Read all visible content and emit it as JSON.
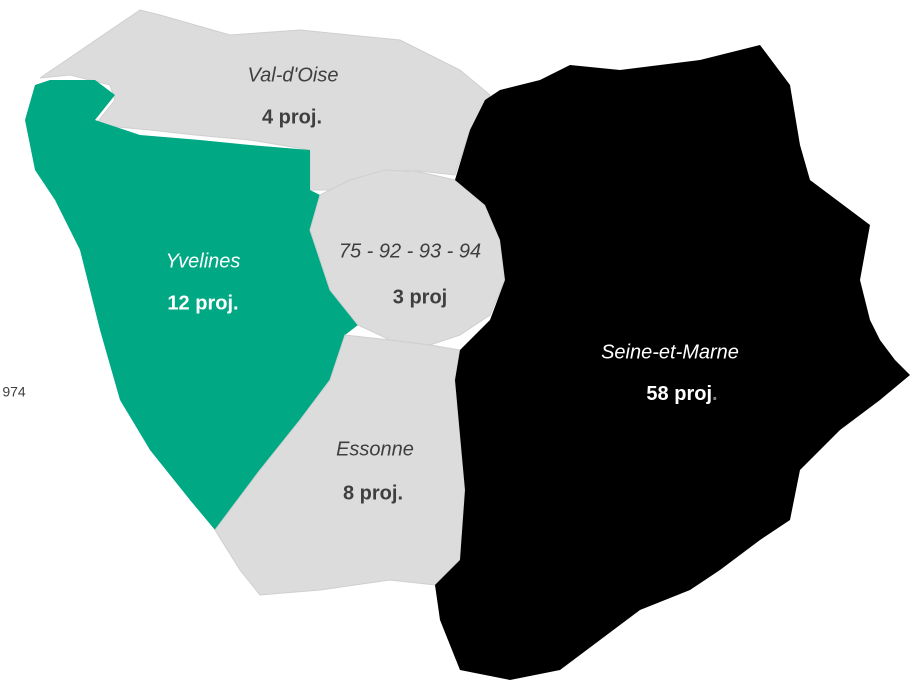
{
  "side_label": "974",
  "regions": [
    {
      "name": "Val-d'Oise",
      "count": "4 proj."
    },
    {
      "name": "Yvelines",
      "count": "12 proj."
    },
    {
      "name": "75 - 92 - 93 - 94",
      "count": "3 proj"
    },
    {
      "name": "Seine-et-Marne",
      "count": "58 proj",
      "suffix": "."
    },
    {
      "name": "Essonne",
      "count": "8 proj."
    }
  ]
}
